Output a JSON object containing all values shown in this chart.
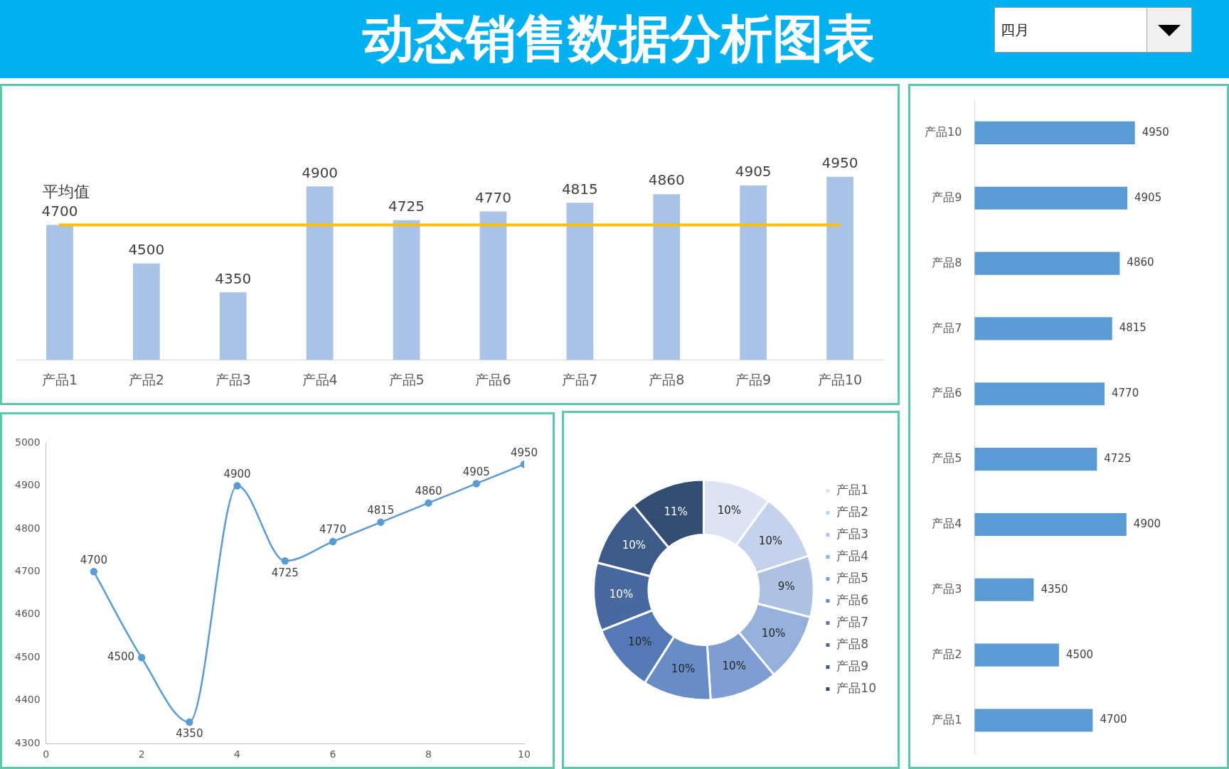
{
  "chart_data": [
    {
      "type": "bar",
      "title": "动态销售数据分析图表",
      "annotations": [
        "四月"
      ],
      "categories": [
        "产品1",
        "产品2",
        "产品3",
        "产品4",
        "产品5",
        "产品6",
        "产品7",
        "产品8",
        "产品9",
        "产品10"
      ],
      "values": [
        4700,
        4500,
        4350,
        4900,
        4725,
        4770,
        4815,
        4860,
        4905,
        4950
      ],
      "color": "#a9c4e6",
      "tick_labels": "x",
      "data_labels": true,
      "ref_lines": [
        {
          "axis": "y",
          "value": 4700,
          "label": "平均值",
          "color": "#ffc000"
        }
      ]
    },
    {
      "type": "line",
      "x": [
        1,
        2,
        3,
        4,
        5,
        6,
        7,
        8,
        9,
        10
      ],
      "values": [
        4700,
        4500,
        4350,
        4900,
        4725,
        4770,
        4815,
        4860,
        4905,
        4950
      ],
      "color": "#5b9bd5",
      "marker": "circle",
      "xlim": [
        0,
        10
      ],
      "xticks": [
        0,
        2,
        4,
        6,
        8,
        10
      ],
      "ylim": [
        4300,
        5000
      ],
      "yticks": [
        4300,
        4400,
        4500,
        4600,
        4700,
        4800,
        4900,
        5000
      ],
      "data_labels": true
    },
    {
      "type": "donut",
      "categories": [
        "产品1",
        "产品2",
        "产品3",
        "产品4",
        "产品5",
        "产品6",
        "产品7",
        "产品8",
        "产品9",
        "产品10"
      ],
      "values": [
        10,
        10,
        9,
        10,
        10,
        10,
        10,
        10,
        10,
        11
      ],
      "colors": [
        "#dbe4f2",
        "#c4d3eb",
        "#adc2e3",
        "#95b0da",
        "#7e9ed1",
        "#688cc5",
        "#5579b4",
        "#48699f",
        "#3d5b89",
        "#334d73"
      ],
      "value_labels": [
        "10%",
        "10%",
        "9%",
        "10%",
        "10%",
        "10%",
        "10%",
        "10%",
        "10%",
        "11%"
      ],
      "legend": "right"
    },
    {
      "type": "bar",
      "orientation": "horizontal",
      "categories": [
        "产品10",
        "产品9",
        "产品8",
        "产品7",
        "产品6",
        "产品5",
        "产品4",
        "产品3",
        "产品2",
        "产品1"
      ],
      "values": [
        4950,
        4905,
        4860,
        4815,
        4770,
        4725,
        4900,
        4350,
        4500,
        4700
      ],
      "color": "#5b9bd5",
      "tick_labels": "y",
      "data_labels": true
    }
  ]
}
